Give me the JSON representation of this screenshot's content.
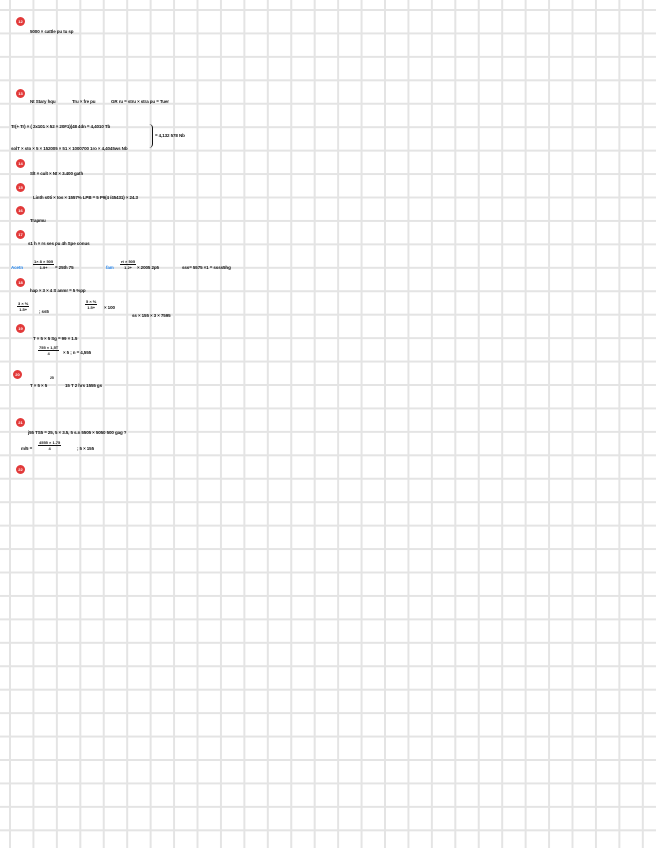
{
  "markers": [
    "12",
    "13",
    "14",
    "15",
    "16",
    "17",
    "18",
    "19",
    "20",
    "21",
    "22",
    "23"
  ],
  "notes": {
    "n1": "5000 × cattle pu  tu sp",
    "n2a": "Nt Stary  hqu",
    "n2b": "Tru × fre pu",
    "n2c": "GR ru = stru × stra pu  = Tuer",
    "n3a": "Tr(+ Tr) × ( 2x101 × 52 × 20F1)(48 4dn  = 4,4010 Tb",
    "n3b": "solT × sto × 5 × 152005 × 51 × 1000700 1ro  × 4,4045ws Nb",
    "n3brace": "= 4,132 578 Nb",
    "n4": "Slt × cult × Nt × 3.400 gath",
    "n5": "Linth     s0ti × tos  × 1557%     LPB = 5 P9(4 /45431) × 24.3",
    "n6": "Trapmu",
    "n7": "s1 h × rs     ses pu   4h  Spe conus",
    "n8_label1": "Acetn",
    "n8_frac1_num": "1× 8 × 505",
    "n8_frac1_den": "1.9+",
    "n8_val1": "= 25th 75",
    "n8_label2": "fam",
    "n8_frac2_num": "rt × 505",
    "n8_frac2_den": "1.2+",
    "n8_val2": "× 2005 2p5",
    "n8_val3": "sss= 5575 ×1 = ssss5hg",
    "n9": "hap × 3 × 4    S anmr  = 5    %pp",
    "n9_frac1_num": "3 × %",
    "n9_frac1_den": "1.5+",
    "n9_frac1_rhs": "; ss5",
    "n9_frac2_num": "5 × %",
    "n9_frac2_den": "1.5+",
    "n9_frac2_rhs": "× 100",
    "n9_val": "ss × 155 × 3 × 7595",
    "n10a": "T × 5 × 5     Sg = 99 × 1.5",
    "n10_frac_num": "755 × 1,5T",
    "n10_frac_den": "4",
    "n10_rhs": "× 5  ;  n = 4,555",
    "n11": "T × 5 × 5",
    "n11_sup": "25",
    "n11b": "15 T 2 hrs    1555 gs",
    "n12": "j55 TS5 = 25, 5 × 3.5, 5  s.n     5505 × 5050     500 gag ?",
    "n13_lhs": "m/5 =",
    "n13_frac_num": "4555  ×  1.75",
    "n13_frac_den": "4",
    "n13_rhs": "; 5 × 155"
  }
}
